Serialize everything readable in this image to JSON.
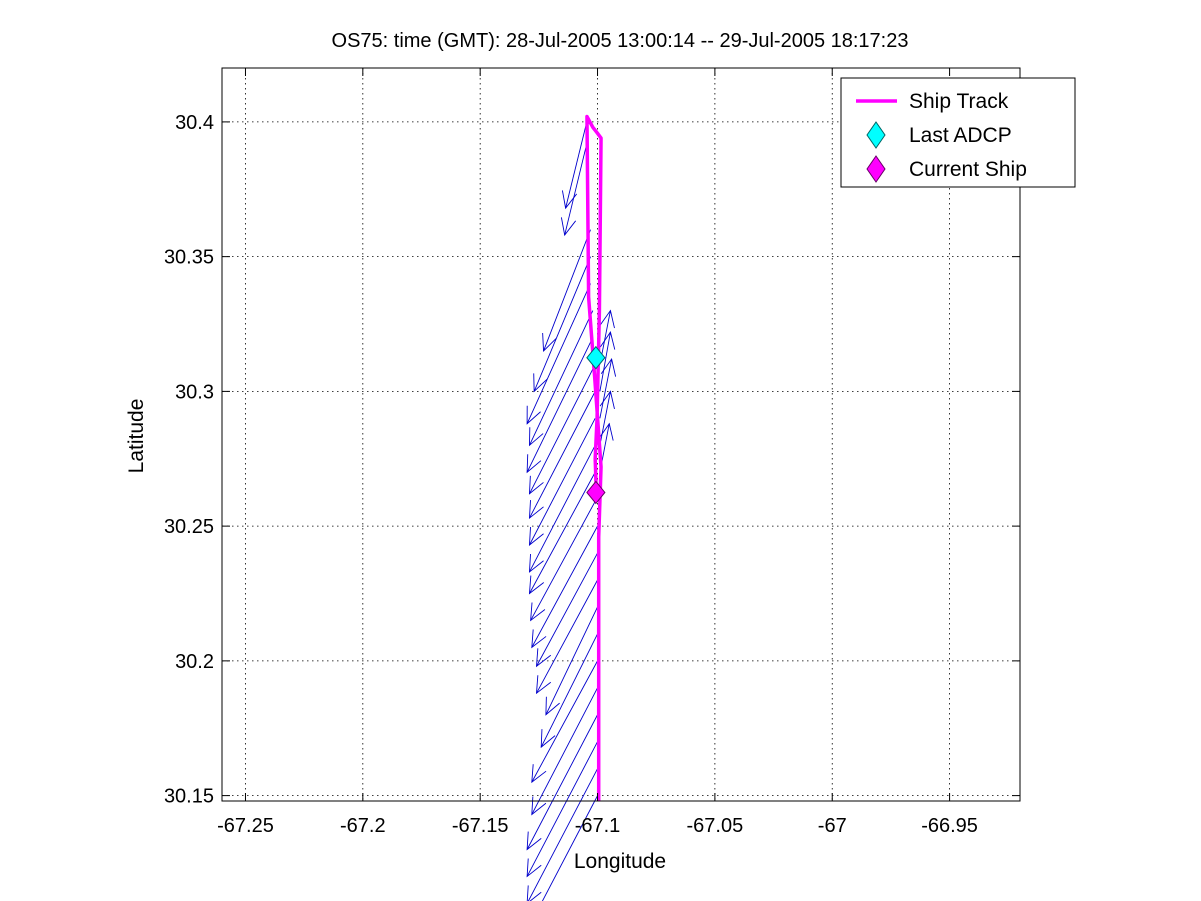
{
  "chart_data": {
    "type": "line",
    "title": "OS75: time (GMT): 28-Jul-2005 13:00:14 -- 29-Jul-2005 18:17:23",
    "xlabel": "Longitude",
    "ylabel": "Latitude",
    "xlim": [
      -67.26,
      -66.92
    ],
    "ylim": [
      30.148,
      30.42
    ],
    "x_ticks": [
      -67.25,
      -67.2,
      -67.15,
      -67.1,
      -67.05,
      -67,
      -66.95
    ],
    "x_tick_labels": [
      "-67.25",
      "-67.2",
      "-67.15",
      "-67.1",
      "-67.05",
      "-67",
      "-66.95"
    ],
    "y_ticks": [
      30.15,
      30.2,
      30.25,
      30.3,
      30.35,
      30.4
    ],
    "y_tick_labels": [
      "30.15",
      "30.2",
      "30.25",
      "30.3",
      "30.35",
      "30.4"
    ],
    "grid": true,
    "legend_position": "top-right",
    "legend": [
      {
        "label": "Ship Track",
        "marker": "line",
        "color": "#ff00ff"
      },
      {
        "label": "Last ADCP",
        "marker": "diamond",
        "color": "#00ffff"
      },
      {
        "label": "Current Ship",
        "marker": "diamond",
        "color": "#ff00ff"
      }
    ],
    "ship_track": {
      "name": "Ship Track",
      "color": "#ff00ff",
      "lon": [
        -67.0995,
        -67.0995,
        -67.0985,
        -67.1012,
        -67.1038,
        -67.1045,
        -67.102,
        -67.1002,
        -67.0985,
        -67.0992,
        -67.1002,
        -67.101,
        -67.1005
      ],
      "lat": [
        30.148,
        30.246,
        30.272,
        30.305,
        30.335,
        30.402,
        30.398,
        30.396,
        30.394,
        30.33,
        30.29,
        30.275,
        30.262
      ]
    },
    "last_adcp": {
      "name": "Last ADCP",
      "lon": -67.1007,
      "lat": 30.3125,
      "color": "#00ffff"
    },
    "current_ship": {
      "name": "Current Ship",
      "lon": -67.1007,
      "lat": 30.2625,
      "color": "#ff00ff"
    },
    "vectors": {
      "color": "#0000cc",
      "items": [
        {
          "lon": -67.104,
          "lat": 30.402,
          "dlon": -0.0096,
          "dlat": -0.034
        },
        {
          "lon": -67.104,
          "lat": 30.394,
          "dlon": -0.01,
          "dlat": -0.036
        },
        {
          "lon": -67.103,
          "lat": 30.36,
          "dlon": -0.02,
          "dlat": -0.045
        },
        {
          "lon": -67.103,
          "lat": 30.35,
          "dlon": -0.024,
          "dlat": -0.05
        },
        {
          "lon": -67.103,
          "lat": 30.34,
          "dlon": -0.027,
          "dlat": -0.052
        },
        {
          "lon": -67.102,
          "lat": 30.33,
          "dlon": -0.027,
          "dlat": -0.05
        },
        {
          "lon": -67.102,
          "lat": 30.32,
          "dlon": -0.028,
          "dlat": -0.05
        },
        {
          "lon": -67.101,
          "lat": 30.31,
          "dlon": -0.028,
          "dlat": -0.048
        },
        {
          "lon": -67.101,
          "lat": 30.3,
          "dlon": -0.028,
          "dlat": -0.047
        },
        {
          "lon": -67.101,
          "lat": 30.29,
          "dlon": -0.028,
          "dlat": -0.047
        },
        {
          "lon": -67.101,
          "lat": 30.28,
          "dlon": -0.028,
          "dlat": -0.047
        },
        {
          "lon": -67.101,
          "lat": 30.27,
          "dlon": -0.028,
          "dlat": -0.045
        },
        {
          "lon": -67.1005,
          "lat": 30.26,
          "dlon": -0.028,
          "dlat": -0.045
        },
        {
          "lon": -67.1,
          "lat": 30.25,
          "dlon": -0.028,
          "dlat": -0.045
        },
        {
          "lon": -67.1,
          "lat": 30.24,
          "dlon": -0.026,
          "dlat": -0.042
        },
        {
          "lon": -67.1,
          "lat": 30.23,
          "dlon": -0.026,
          "dlat": -0.042
        },
        {
          "lon": -67.1,
          "lat": 30.22,
          "dlon": -0.022,
          "dlat": -0.04
        },
        {
          "lon": -67.1,
          "lat": 30.21,
          "dlon": -0.024,
          "dlat": -0.042
        },
        {
          "lon": -67.1,
          "lat": 30.2,
          "dlon": -0.028,
          "dlat": -0.045
        },
        {
          "lon": -67.1,
          "lat": 30.19,
          "dlon": -0.028,
          "dlat": -0.047
        },
        {
          "lon": -67.1,
          "lat": 30.18,
          "dlon": -0.03,
          "dlat": -0.05
        },
        {
          "lon": -67.1,
          "lat": 30.17,
          "dlon": -0.03,
          "dlat": -0.05
        },
        {
          "lon": -67.1,
          "lat": 30.16,
          "dlon": -0.03,
          "dlat": -0.05
        },
        {
          "lon": -67.1,
          "lat": 30.15,
          "dlon": -0.03,
          "dlat": -0.05
        },
        {
          "lon": -67.099,
          "lat": 30.27,
          "dlon": 0.004,
          "dlat": 0.018
        },
        {
          "lon": -67.099,
          "lat": 30.28,
          "dlon": 0.0045,
          "dlat": 0.02
        },
        {
          "lon": -67.099,
          "lat": 30.29,
          "dlon": 0.005,
          "dlat": 0.022
        },
        {
          "lon": -67.099,
          "lat": 30.3,
          "dlon": 0.0045,
          "dlat": 0.022
        },
        {
          "lon": -67.099,
          "lat": 30.31,
          "dlon": 0.0045,
          "dlat": 0.02
        }
      ]
    }
  }
}
